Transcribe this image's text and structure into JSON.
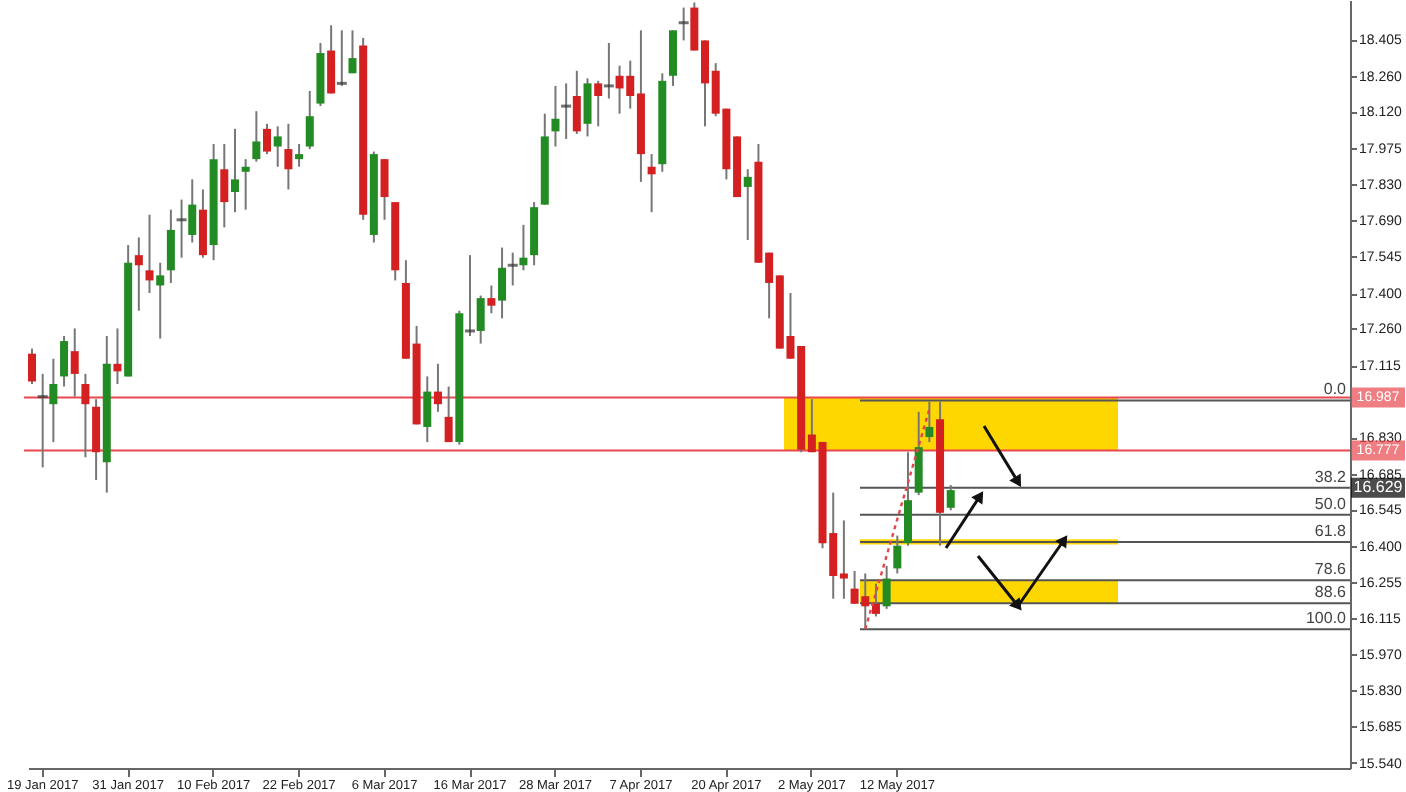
{
  "chart_data": {
    "type": "candlestick",
    "categories": [
      null,
      "19 Jan 2017",
      null,
      null,
      null,
      null,
      null,
      null,
      null,
      "31 Jan 2017",
      null,
      null,
      null,
      null,
      null,
      null,
      null,
      "10 Feb 2017",
      null,
      null,
      null,
      null,
      null,
      null,
      null,
      "22 Feb 2017",
      null,
      null,
      null,
      null,
      null,
      null,
      null,
      "6 Mar 2017",
      null,
      null,
      null,
      null,
      null,
      null,
      null,
      "16 Mar 2017",
      null,
      null,
      null,
      null,
      null,
      null,
      null,
      "28 Mar 2017",
      null,
      null,
      null,
      null,
      null,
      null,
      null,
      "7 Apr 2017",
      null,
      null,
      null,
      null,
      null,
      null,
      null,
      "20 Apr 2017",
      null,
      null,
      null,
      null,
      null,
      null,
      null,
      "2 May 2017",
      null,
      null,
      null,
      null,
      null,
      null,
      null,
      "12 May 2017",
      null,
      null,
      null,
      null,
      null,
      null,
      null,
      null,
      null,
      null,
      null,
      null,
      null,
      null,
      null,
      null,
      null,
      null,
      null,
      null,
      null,
      null,
      null,
      null,
      null,
      null,
      null,
      null,
      null,
      null,
      null,
      null,
      null,
      null,
      null,
      null,
      null,
      null,
      null,
      null,
      null,
      null
    ],
    "ohlc": [
      [
        17.16,
        17.18,
        17.04,
        17.05
      ],
      [
        16.99,
        17.08,
        16.71,
        16.99
      ],
      [
        16.96,
        17.14,
        16.81,
        17.04
      ],
      [
        17.07,
        17.23,
        17.03,
        17.21
      ],
      [
        17.17,
        17.26,
        16.99,
        17.08
      ],
      [
        17.04,
        17.08,
        16.75,
        16.96
      ],
      [
        16.95,
        16.98,
        16.66,
        16.77
      ],
      [
        16.73,
        17.23,
        16.61,
        17.12
      ],
      [
        17.12,
        17.26,
        17.04,
        17.09
      ],
      [
        17.07,
        17.59,
        17.07,
        17.52
      ],
      [
        17.55,
        17.62,
        17.33,
        17.51
      ],
      [
        17.49,
        17.71,
        17.4,
        17.45
      ],
      [
        17.43,
        17.52,
        17.22,
        17.47
      ],
      [
        17.49,
        17.73,
        17.44,
        17.65
      ],
      [
        17.69,
        17.77,
        17.54,
        17.69
      ],
      [
        17.63,
        17.85,
        17.6,
        17.75
      ],
      [
        17.73,
        17.81,
        17.54,
        17.55
      ],
      [
        17.59,
        17.99,
        17.53,
        17.93
      ],
      [
        17.89,
        17.99,
        17.66,
        17.76
      ],
      [
        17.8,
        18.05,
        17.72,
        17.85
      ],
      [
        17.88,
        17.93,
        17.73,
        17.9
      ],
      [
        17.93,
        18.12,
        17.92,
        18.0
      ],
      [
        18.05,
        18.07,
        17.95,
        17.96
      ],
      [
        17.98,
        18.06,
        17.9,
        18.02
      ],
      [
        17.97,
        18.07,
        17.81,
        17.89
      ],
      [
        17.93,
        17.99,
        17.9,
        17.95
      ],
      [
        17.98,
        18.2,
        17.97,
        18.1
      ],
      [
        18.15,
        18.39,
        18.14,
        18.35
      ],
      [
        18.36,
        18.46,
        18.19,
        18.19
      ],
      [
        18.23,
        18.44,
        18.22,
        18.23
      ],
      [
        18.27,
        18.44,
        18.27,
        18.33
      ],
      [
        18.38,
        18.41,
        17.69,
        17.71
      ],
      [
        17.63,
        17.96,
        17.6,
        17.95
      ],
      [
        17.93,
        17.93,
        17.69,
        17.78
      ],
      [
        17.76,
        17.76,
        17.45,
        17.49
      ],
      [
        17.44,
        17.53,
        17.14,
        17.14
      ],
      [
        17.2,
        17.27,
        16.88,
        16.88
      ],
      [
        16.87,
        17.07,
        16.81,
        17.01
      ],
      [
        17.01,
        17.12,
        16.93,
        16.96
      ],
      [
        16.91,
        17.03,
        16.81,
        16.81
      ],
      [
        16.81,
        17.33,
        16.8,
        17.32
      ],
      [
        17.25,
        17.55,
        17.23,
        17.25
      ],
      [
        17.25,
        17.39,
        17.2,
        17.38
      ],
      [
        17.38,
        17.43,
        17.32,
        17.35
      ],
      [
        17.37,
        17.58,
        17.3,
        17.5
      ],
      [
        17.51,
        17.56,
        17.43,
        17.51
      ],
      [
        17.51,
        17.67,
        17.49,
        17.54
      ],
      [
        17.55,
        17.76,
        17.51,
        17.74
      ],
      [
        17.75,
        18.11,
        17.75,
        18.02
      ],
      [
        18.04,
        18.22,
        17.98,
        18.09
      ],
      [
        18.14,
        18.23,
        18.01,
        18.14
      ],
      [
        18.18,
        18.28,
        18.03,
        18.04
      ],
      [
        18.07,
        18.25,
        18.02,
        18.23
      ],
      [
        18.23,
        18.24,
        18.06,
        18.18
      ],
      [
        18.22,
        18.39,
        18.17,
        18.22
      ],
      [
        18.26,
        18.3,
        18.11,
        18.21
      ],
      [
        18.26,
        18.32,
        18.13,
        18.18
      ],
      [
        18.19,
        18.44,
        17.84,
        17.95
      ],
      [
        17.9,
        17.95,
        17.72,
        17.87
      ],
      [
        17.91,
        18.27,
        17.88,
        18.24
      ],
      [
        18.26,
        18.44,
        18.22,
        18.44
      ],
      [
        18.47,
        18.53,
        18.4,
        18.47
      ],
      [
        18.53,
        18.55,
        18.36,
        18.36
      ],
      [
        18.4,
        18.4,
        18.06,
        18.23
      ],
      [
        18.28,
        18.31,
        18.1,
        18.11
      ],
      [
        18.13,
        18.13,
        17.85,
        17.89
      ],
      [
        18.02,
        18.02,
        17.78,
        17.78
      ],
      [
        17.82,
        17.89,
        17.61,
        17.86
      ],
      [
        17.92,
        17.99,
        17.52,
        17.52
      ],
      [
        17.56,
        17.56,
        17.3,
        17.44
      ],
      [
        17.47,
        17.47,
        17.18,
        17.18
      ],
      [
        17.23,
        17.4,
        17.14,
        17.14
      ],
      [
        17.19,
        17.19,
        16.77,
        16.78
      ],
      [
        16.84,
        16.98,
        16.77,
        16.77
      ],
      [
        16.81,
        16.81,
        16.39,
        16.41
      ],
      [
        16.45,
        16.61,
        16.19,
        16.28
      ],
      [
        16.29,
        16.5,
        16.19,
        16.27
      ],
      [
        16.23,
        16.3,
        16.17,
        16.17
      ],
      [
        16.2,
        16.29,
        16.07,
        16.16
      ],
      [
        16.17,
        16.25,
        16.12,
        16.13
      ],
      [
        16.16,
        16.32,
        16.15,
        16.27
      ],
      [
        16.31,
        16.44,
        16.29,
        16.4
      ],
      [
        16.41,
        16.77,
        16.4,
        16.58
      ],
      [
        16.61,
        16.93,
        16.6,
        16.79
      ],
      [
        16.83,
        16.97,
        16.81,
        16.87
      ],
      [
        16.9,
        16.97,
        16.4,
        16.53
      ],
      [
        16.55,
        16.64,
        16.54,
        16.62
      ],
      null,
      null,
      null,
      null,
      null,
      null,
      null,
      null,
      null,
      null,
      null,
      null,
      null,
      null,
      null,
      null,
      null,
      null,
      null,
      null,
      null,
      null,
      null,
      null,
      null,
      null,
      null,
      null,
      null,
      null,
      null,
      null,
      null,
      null,
      null,
      null,
      null
    ],
    "colors": [
      "#d42020",
      "#333333",
      "#238b23",
      "#238b23",
      "#d42020",
      "#d42020",
      "#d42020",
      "#238b23",
      "#d42020",
      "#238b23",
      "#d42020",
      "#d42020",
      "#238b23",
      "#238b23",
      "#333333",
      "#238b23",
      "#d42020",
      "#238b23",
      "#d42020",
      "#238b23",
      "#238b23",
      "#238b23",
      "#d42020",
      "#238b23",
      "#d42020",
      "#238b23",
      "#238b23",
      "#238b23",
      "#d42020",
      "#333333",
      "#238b23",
      "#d42020",
      "#238b23",
      "#d42020",
      "#d42020",
      "#d42020",
      "#d42020",
      "#238b23",
      "#d42020",
      "#d42020",
      "#238b23",
      "#333333",
      "#238b23",
      "#d42020",
      "#238b23",
      "#333333",
      "#238b23",
      "#238b23",
      "#238b23",
      "#238b23",
      "#333333",
      "#d42020",
      "#238b23",
      "#d42020",
      "#333333",
      "#d42020",
      "#d42020",
      "#d42020",
      "#d42020",
      "#238b23",
      "#238b23",
      "#333333",
      "#d42020",
      "#d42020",
      "#d42020",
      "#d42020",
      "#d42020",
      "#238b23",
      "#d42020",
      "#d42020",
      "#d42020",
      "#d42020",
      "#d42020",
      "#d42020",
      "#d42020",
      "#d42020",
      "#d42020",
      "#d42020",
      "#d42020",
      "#d42020",
      "#238b23",
      "#238b23",
      "#238b23",
      "#238b23",
      "#238b23",
      "#d42020",
      "#238b23",
      null,
      null,
      null,
      null,
      null,
      null,
      null,
      null,
      null,
      null,
      null,
      null,
      null,
      null,
      null,
      null,
      null,
      null,
      null,
      null,
      null,
      null,
      null,
      null,
      null,
      null,
      null,
      null,
      null,
      null,
      null,
      null,
      null,
      null,
      null,
      null,
      null
    ],
    "series": [
      {
        "type": "line",
        "color": "#e0474c",
        "line_style": "dotted",
        "values": [
          null,
          null,
          null,
          null,
          null,
          null,
          null,
          null,
          null,
          null,
          null,
          null,
          null,
          null,
          null,
          null,
          null,
          null,
          null,
          null,
          null,
          null,
          null,
          null,
          null,
          null,
          null,
          null,
          null,
          null,
          null,
          null,
          null,
          null,
          null,
          null,
          null,
          null,
          null,
          null,
          null,
          null,
          null,
          null,
          null,
          null,
          null,
          null,
          null,
          null,
          null,
          null,
          null,
          null,
          null,
          null,
          null,
          null,
          null,
          null,
          null,
          null,
          null,
          null,
          null,
          null,
          null,
          null,
          null,
          null,
          null,
          null,
          null,
          null,
          null,
          null,
          null,
          null,
          16.07,
          null,
          null,
          null,
          null,
          null,
          16.94,
          null,
          null,
          null,
          null,
          null,
          null,
          null,
          null,
          null,
          null,
          null,
          null,
          null,
          null,
          null,
          null,
          null,
          null,
          null,
          null,
          null,
          null,
          null,
          null,
          null,
          null,
          null,
          null,
          null,
          null,
          null,
          null,
          null,
          null,
          null,
          null,
          null,
          null,
          null
        ]
      }
    ],
    "ylim": [
      15.52,
      18.56
    ],
    "yticks": [
      {
        "value": 15.54,
        "label": "15.540"
      },
      {
        "value": 15.685,
        "label": "15.685"
      },
      {
        "value": 15.83,
        "label": "15.830"
      },
      {
        "value": 15.97,
        "label": "15.970"
      },
      {
        "value": 16.115,
        "label": "16.115"
      },
      {
        "value": 16.255,
        "label": "16.255"
      },
      {
        "value": 16.4,
        "label": "16.400"
      },
      {
        "value": 16.545,
        "label": "16.545"
      },
      {
        "value": 16.685,
        "label": "16.685"
      },
      {
        "value": 16.83,
        "label": "16.830"
      },
      {
        "value": 17.115,
        "label": "17.115"
      },
      {
        "value": 17.26,
        "label": "17.260"
      },
      {
        "value": 17.4,
        "label": "17.400"
      },
      {
        "value": 17.545,
        "label": "17.545"
      },
      {
        "value": 17.69,
        "label": "17.690"
      },
      {
        "value": 17.83,
        "label": "17.830"
      },
      {
        "value": 17.975,
        "label": "17.975"
      },
      {
        "value": 18.12,
        "label": "18.120"
      },
      {
        "value": 18.26,
        "label": "18.260"
      },
      {
        "value": 18.405,
        "label": "18.405"
      }
    ],
    "ref_lines": [
      {
        "axis": "y",
        "value": 16.987,
        "label": "16.987",
        "color": "#e8474f"
      },
      {
        "axis": "y",
        "value": 16.777,
        "label": "16.777",
        "color": "#e8474f"
      },
      {
        "axis": "y",
        "value": 16.975,
        "color": "#555555"
      },
      {
        "axis": "y",
        "value": 16.629,
        "color": "#555555"
      },
      {
        "axis": "y",
        "value": 16.522,
        "color": "#555555"
      },
      {
        "axis": "y",
        "value": 16.415,
        "color": "#555555"
      },
      {
        "axis": "y",
        "value": 16.263,
        "color": "#555555"
      },
      {
        "axis": "y",
        "value": 16.172,
        "color": "#555555"
      },
      {
        "axis": "y",
        "value": 16.069,
        "color": "#555555"
      }
    ],
    "bands": [
      {
        "axis": "y",
        "from": 16.777,
        "to": 16.987,
        "color": "#ffd700"
      },
      {
        "axis": "y",
        "from": 16.405,
        "to": 16.425,
        "color": "#ffd700"
      },
      {
        "axis": "y",
        "from": 16.172,
        "to": 16.263,
        "color": "#ffd700"
      }
    ],
    "annotations": [
      "16.629",
      {
        "text": "0.0",
        "y": 16.975
      },
      {
        "text": "38.2",
        "y": 16.629
      },
      {
        "text": "50.0",
        "y": 16.522
      },
      {
        "text": "61.8",
        "y": 16.415
      },
      {
        "text": "78.6",
        "y": 16.263
      },
      {
        "text": "88.6",
        "y": 16.172
      },
      {
        "text": "100.0",
        "y": 16.069
      }
    ]
  }
}
